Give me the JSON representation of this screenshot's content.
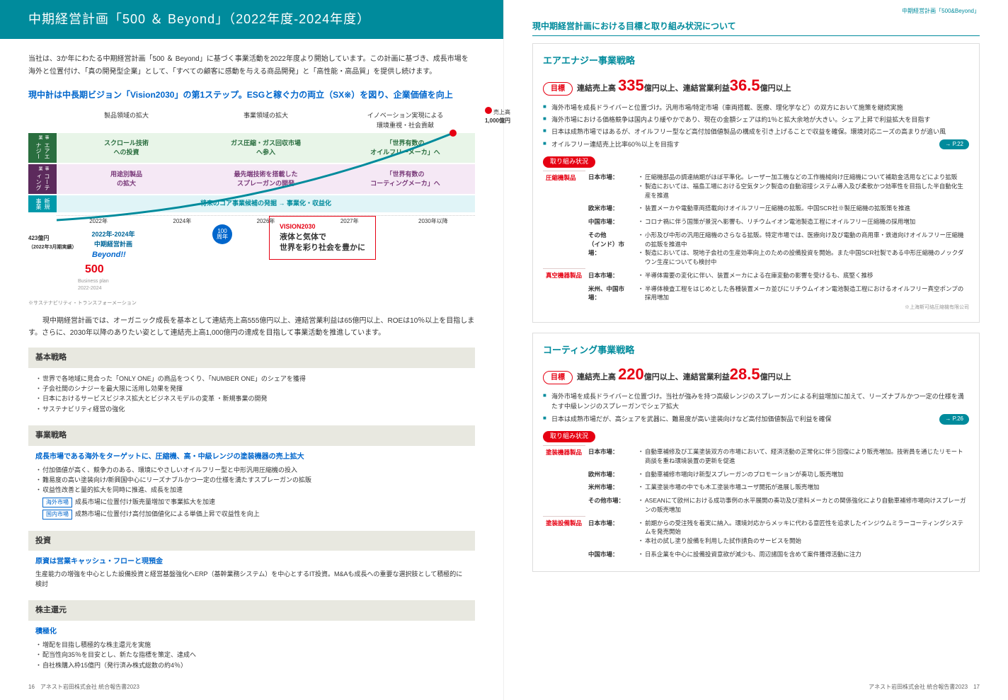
{
  "breadcrumb": "中期経営計画「500&Beyond」",
  "banner": "中期経営計画「500 ＆ Beyond」（2022年度-2024年度）",
  "intro": "当社は、3か年にわたる中期経営計画「500 ＆ Beyond」に基づく事業活動を2022年度より開始しています。この計画に基づき、成長市場を海外と位置付け、「真の開発型企業」として、「すべての顧客に感動を与える商品開発」と「高性能・高品質」を提供し続けます。",
  "vision_heading": "現中計は中長期ビジョン「Vision2030」の第1ステップ。ESGと稼ぐ力の両立（SX※）を図り、企業価値を向上",
  "diagram": {
    "headers": [
      "製品領域の拡大",
      "事業領域の拡大",
      "イノベーション実現による\n環境重視・社会貢献"
    ],
    "sales_label": "売上高",
    "sales_value": "1,000億円",
    "rows": [
      {
        "label": "エアエナジー",
        "sub": "事業",
        "cls": "green",
        "cells": [
          "スクロール技術\nへの投資",
          "ガス圧縮・ガス回収市場\nへ参入",
          "「世界有数の\nオイルフリーメーカ」へ"
        ]
      },
      {
        "label": "コーティング",
        "sub": "事業",
        "cls": "purple",
        "cells": [
          "用途別製品\nの拡大",
          "最先端技術を搭載した\nスプレーガンの開発",
          "「世界有数の\nコーティングメーカ」へ"
        ]
      }
    ],
    "newbiz_label": "新規事業",
    "newbiz_text": "将来のコア事業候補の発掘 → 事業化・収益化",
    "start": "423億円",
    "start_note": "（2022年3月期実績）",
    "timeline": [
      "2022年",
      "2024年",
      "2026年",
      "2027年",
      "2030年以降"
    ],
    "plan_period": "2022年-2024年\n中期経営計画",
    "beyond": "Beyond!!",
    "five00": "500",
    "bp": "Business plan\n2022-2024",
    "anniv": "100\n周年",
    "vision_t": "VISION2030",
    "vision_txt": "液体と気体で\n世界を彩り社会を豊かに",
    "sx_note": "※サステナビリティ・トランスフォーメーション"
  },
  "body": "　現中期経営計画では、オーガニック成長を基本として連結売上高555億円以上、連結営業利益は65億円以上、ROEは10％以上を目指します。さらに、2030年以降のありたい姿として連結売上高1,000億円の達成を目指して事業活動を推進しています。",
  "left_blocks": [
    {
      "head": "基本戦略",
      "items": [
        "世界で各地域に見合った「ONLY ONE」の商品をつくり、「NUMBER ONE」のシェアを獲得",
        "子会社間のシナジーを最大限に活用し効果を発揮",
        "日本におけるサービスビジネス拡大とビジネスモデルの変革 ・新規事業の開発",
        "サステナビリティ経営の強化"
      ]
    },
    {
      "head": "事業戦略",
      "subtitle": "成長市場である海外をターゲットに、圧縮機、高・中級レンジの塗装機器の売上拡大",
      "items": [
        "付加価値が高く、競争力のある、環境にやさしいオイルフリー型と中形汎用圧縮機の投入",
        "難易度の高い塗装向け/新興国中心にリーズナブルかつ一定の仕様を満たすスプレーガンの拡販",
        "収益性改善と量的拡大を同時に推進、成長を加速"
      ],
      "boxes": [
        {
          "t": "海外市場",
          "d": "成長市場に位置付け販売量増加で事業拡大を加速"
        },
        {
          "t": "国内市場",
          "d": "成熟市場に位置付け高付加価値化による単価上昇で収益性を向上"
        }
      ]
    },
    {
      "head": "投資",
      "subtitle": "原資は営業キャッシュ・フローと現預金",
      "plain": "生産能力の増強を中心とした設備投資と経営基盤強化へERP（基幹業務システム）を中心とするIT投資。M&Aも成長への重要な選択肢として積極的に検討"
    },
    {
      "head": "株主還元",
      "subtitle": "積極化",
      "items": [
        "増配を目指し積極的な株主還元を実施",
        "配当性向35％を目安とし、新たな指標を策定、達成へ",
        "自社株購入枠15億円（発行済み株式総数の約4％）"
      ]
    }
  ],
  "right_heading": "現中期経営計画における目標と取り組み状況について",
  "biz": [
    {
      "title": "エアエナジー事業戦略",
      "target_pre": "連結売上高 ",
      "v1": "335",
      "mid": "億円以上、連結営業利益",
      "v2": "36.5",
      "post": "億円以上",
      "bullets": [
        "海外市場を成長ドライバーと位置づけ。汎用市場/特定市場（車両搭載、医療、理化学など）の双方において施策を継続実施",
        "海外市場における価格競争は国内より緩やかであり、現在の金額シェアは約1％と拡大余地が大きい。シェア上昇で利益拡大を目指す",
        "日本は成熟市場ではあるが、オイルフリー型など高付加価値製品の構成を引き上げることで収益を確保。環境対応ニーズの高まりが追い風",
        "オイルフリー連結売上比率60％以上を目指す"
      ],
      "link": "→ P.22",
      "status": [
        {
          "cat": "圧縮機製品",
          "rows": [
            {
              "m": "日本市場：",
              "d": [
                "圧縮機部品の調達納期がほぼ平準化。レーザー加工機などの工作機械向け圧縮機について補助金活用などにより拡販",
                "製造においては、福島工場における空気タンク製造の自動溶接システム導入及び柔軟かつ効率性を目指した半自動化生産を推進"
              ]
            },
            {
              "m": "欧米市場：",
              "d": [
                "装置メーカや電動車両搭載向けオイルフリー圧縮機の拡販。中国SCR社※製圧縮機の拡販策を推進"
              ]
            },
            {
              "m": "中国市場：",
              "d": [
                "コロナ禍に伴う国策が景況へ影響も、リチウムイオン電池製造工程にオイルフリー圧縮機の採用増加"
              ]
            },
            {
              "m": "その他\n（インド）市場：",
              "d": [
                "小形及び中形の汎用圧縮機のさらなる拡販。特定市場では、医療向け及び電動の商用車・鉄道向けオイルフリー圧縮機の拡販を推進中",
                "製造においては、現地子会社の生産効率向上のための設備投資を開始。また中国SCR社製である中形圧縮機のノックダウン生産についても検討中"
              ]
            }
          ]
        },
        {
          "cat": "真空機器製品",
          "rows": [
            {
              "m": "日本市場：",
              "d": [
                "半導体需要の変化に伴い、装置メーカによる在庫変動の影響を受けるも、底堅く推移"
              ]
            },
            {
              "m": "米州、中国市場：",
              "d": [
                "半導体検査工程をはじめとした各種装置メーカ並びにリチウムイオン電池製造工程におけるオイルフリー真空ポンプの採用増加"
              ]
            }
          ]
        }
      ],
      "note": "※上海斯可絡圧縮機有限公司"
    },
    {
      "title": "コーティング事業戦略",
      "target_pre": "連結売上高 ",
      "v1": "220",
      "mid": "億円以上、連結営業利益",
      "v2": "28.5",
      "post": "億円以上",
      "bullets": [
        "海外市場を成長ドライバーと位置づけ。当社が強みを持つ高級レンジのスプレーガンによる利益増加に加えて、リーズナブルかつ一定の仕様を満たす中級レンジのスプレーガンでシェア拡大",
        "日本は成熟市場だが、高シェアを武器に、難易度が高い塗装向けなど高付加価値製品で利益を確保"
      ],
      "link": "→ P.26",
      "status": [
        {
          "cat": "塗装機器製品",
          "rows": [
            {
              "m": "日本市場：",
              "d": [
                "自動車補修及び工業塗装双方の市場において、経済活動の正常化に伴う回復により販売増加。技術員を通じたリモート商談を重ね環境装置の更新を促進"
              ]
            },
            {
              "m": "欧州市場：",
              "d": [
                "自動車補修市場向け新型スプレーガンのプロモーションが奏功し販売増加"
              ]
            },
            {
              "m": "米州市場：",
              "d": [
                "工業塗装市場の中でも木工塗装市場ユーザ開拓が進展し販売増加"
              ]
            },
            {
              "m": "その他市場：",
              "d": [
                "ASEANにて欧州における成功事例の水平展開の奏功及び塗料メーカとの関係強化により自動車補修市場向けスプレーガンの販売増加"
              ]
            }
          ]
        },
        {
          "cat": "塗装設備製品",
          "rows": [
            {
              "m": "日本市場：",
              "d": [
                "前期からの受注残を着実に納入。環境対応からメッキに代わる意匠性を追求したインジウムミラーコーティングシステムを発売開始",
                "本社の試し塗り設備を利用した試作請負のサービスを開始"
              ]
            },
            {
              "m": "中国市場：",
              "d": [
                "日系企業を中心に設備投資意欲が減少も、周辺諸国を含めて案件獲得活動に注力"
              ]
            }
          ]
        }
      ]
    }
  ],
  "footer_l": "16　アネスト岩田株式会社 統合報告書2023",
  "footer_r": "アネスト岩田株式会社 統合報告書2023　17",
  "labels": {
    "target": "目標",
    "status": "取り組み状況"
  }
}
